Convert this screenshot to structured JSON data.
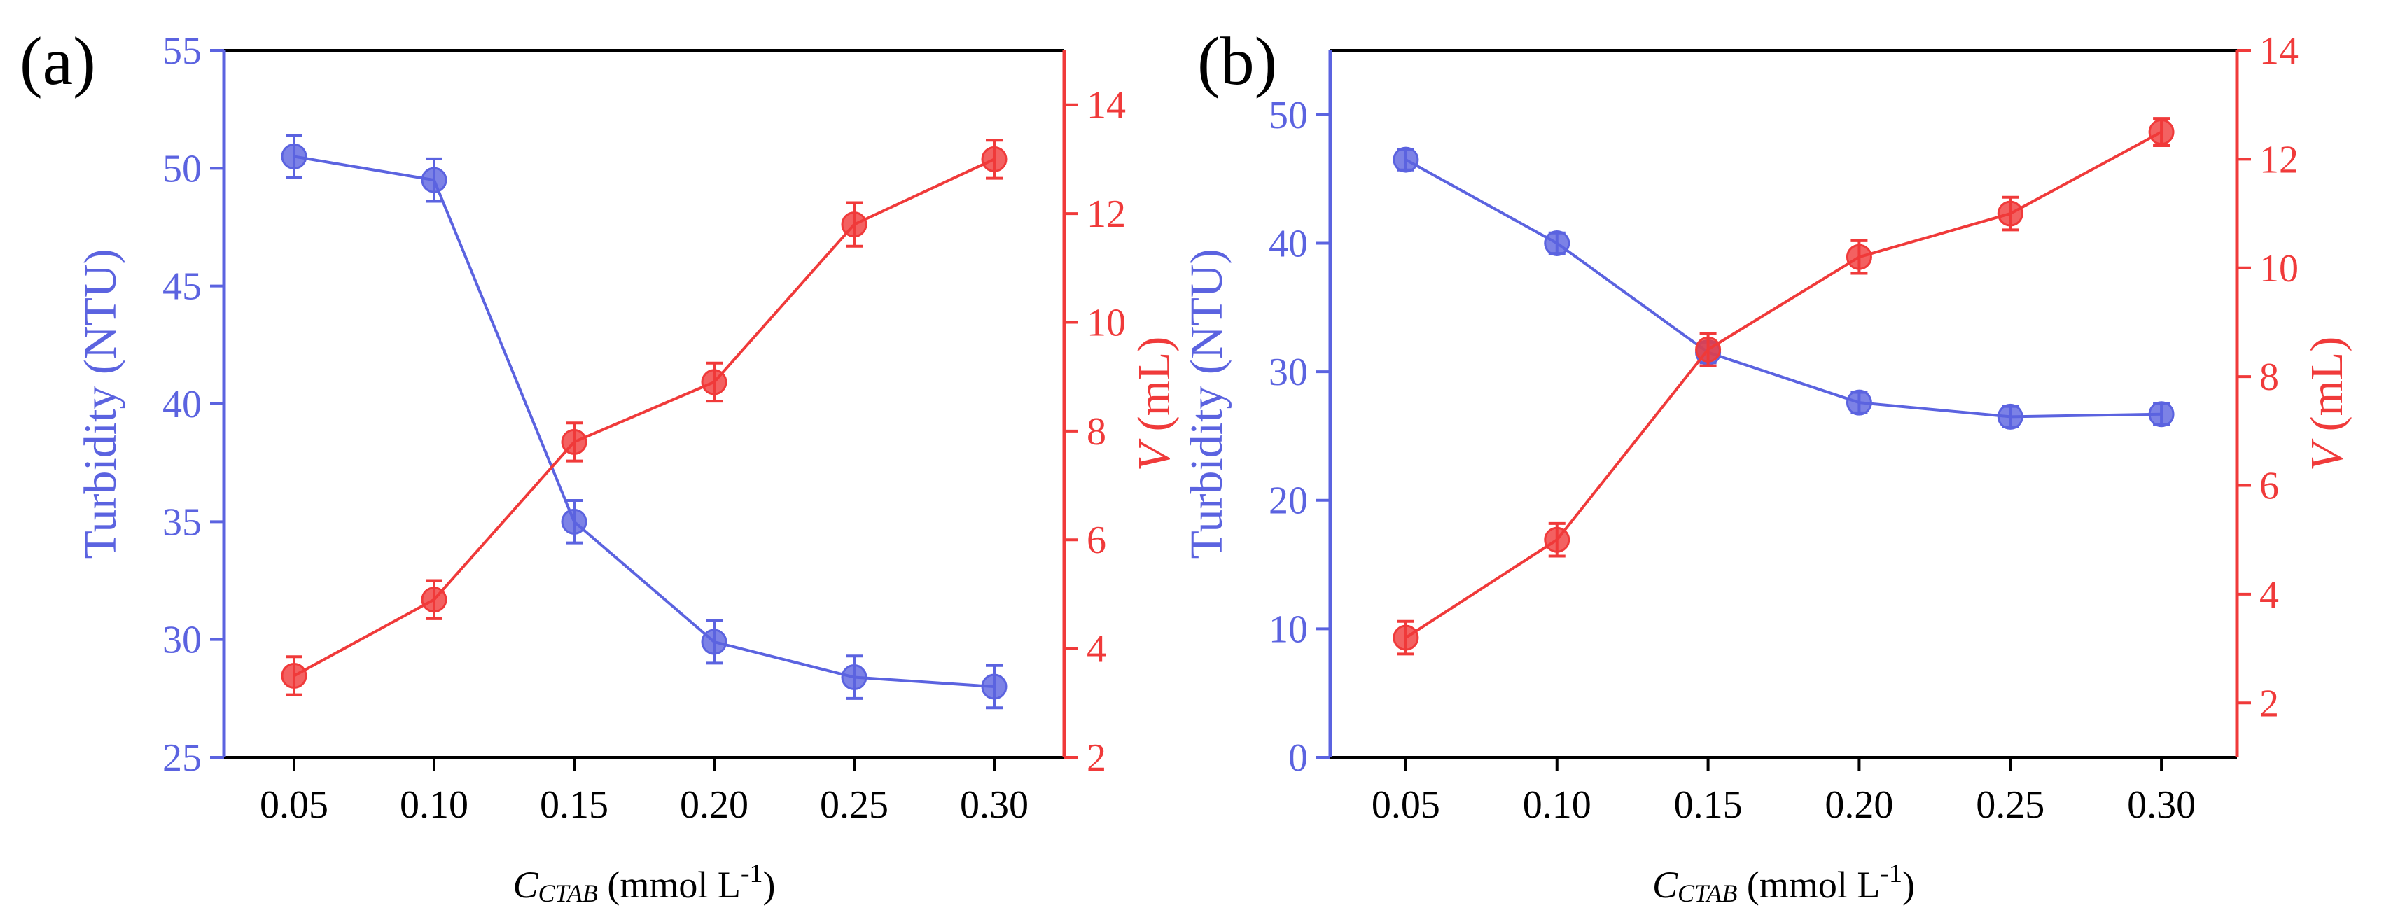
{
  "colors": {
    "blue": "#5b63e0",
    "red": "#f03a3a",
    "axis": "#000000"
  },
  "chart_data": [
    {
      "panel_label": "(a)",
      "type": "line",
      "x": [
        0.05,
        0.1,
        0.15,
        0.2,
        0.25,
        0.3
      ],
      "x_tick_labels": [
        "0.05",
        "0.10",
        "0.15",
        "0.20",
        "0.25",
        "0.30"
      ],
      "xlim": [
        0.025,
        0.325
      ],
      "xlabel": {
        "symbol": "C",
        "subscript": "CTAB",
        "unit": " (mmol L",
        "superscript": "-1",
        "close": ")"
      },
      "y_left": {
        "label": "Turbidity (NTU)",
        "lim": [
          25,
          55
        ],
        "ticks": [
          25,
          30,
          35,
          40,
          45,
          50,
          55
        ],
        "tick_labels": [
          "25",
          "30",
          "35",
          "40",
          "45",
          "50",
          "55"
        ]
      },
      "y_right": {
        "label_symbol": "V",
        "label_unit": " (mL)",
        "lim": [
          2,
          15
        ],
        "ticks": [
          2,
          4,
          6,
          8,
          10,
          12,
          14
        ],
        "tick_labels": [
          "2",
          "4",
          "6",
          "8",
          "10",
          "12",
          "14"
        ]
      },
      "series": [
        {
          "name": "Turbidity",
          "axis": "left",
          "color": "#5b63e0",
          "values": [
            50.5,
            49.5,
            35.0,
            29.9,
            28.4,
            28.0
          ],
          "errors": [
            0.9,
            0.9,
            0.9,
            0.9,
            0.9,
            0.9
          ]
        },
        {
          "name": "V",
          "axis": "right",
          "color": "#f03a3a",
          "values": [
            3.5,
            4.9,
            7.8,
            8.9,
            11.8,
            13.0
          ],
          "errors": [
            0.35,
            0.35,
            0.35,
            0.35,
            0.4,
            0.35
          ]
        }
      ]
    },
    {
      "panel_label": "(b)",
      "type": "line",
      "x": [
        0.05,
        0.1,
        0.15,
        0.2,
        0.25,
        0.3
      ],
      "x_tick_labels": [
        "0.05",
        "0.10",
        "0.15",
        "0.20",
        "0.25",
        "0.30"
      ],
      "xlim": [
        0.025,
        0.325
      ],
      "xlabel": {
        "symbol": "C",
        "subscript": "CTAB",
        "unit": " (mmol L",
        "superscript": "-1",
        "close": ")"
      },
      "y_left": {
        "label": "Turbidity (NTU)",
        "lim": [
          0,
          55
        ],
        "ticks": [
          0,
          10,
          20,
          30,
          40,
          50
        ],
        "tick_labels": [
          "0",
          "10",
          "20",
          "30",
          "40",
          "50"
        ]
      },
      "y_right": {
        "label_symbol": "V",
        "label_unit": " (mL)",
        "lim": [
          1,
          14
        ],
        "ticks": [
          2,
          4,
          6,
          8,
          10,
          12,
          14
        ],
        "tick_labels": [
          "2",
          "4",
          "6",
          "8",
          "10",
          "12",
          "14"
        ]
      },
      "series": [
        {
          "name": "Turbidity",
          "axis": "left",
          "color": "#5b63e0",
          "values": [
            46.5,
            40.0,
            31.5,
            27.6,
            26.5,
            26.7
          ],
          "errors": [
            0.8,
            0.8,
            0.8,
            0.8,
            0.8,
            0.8
          ]
        },
        {
          "name": "V",
          "axis": "right",
          "color": "#f03a3a",
          "values": [
            3.2,
            5.0,
            8.5,
            10.2,
            11.0,
            12.5
          ],
          "errors": [
            0.3,
            0.3,
            0.3,
            0.3,
            0.3,
            0.25
          ]
        }
      ]
    }
  ]
}
